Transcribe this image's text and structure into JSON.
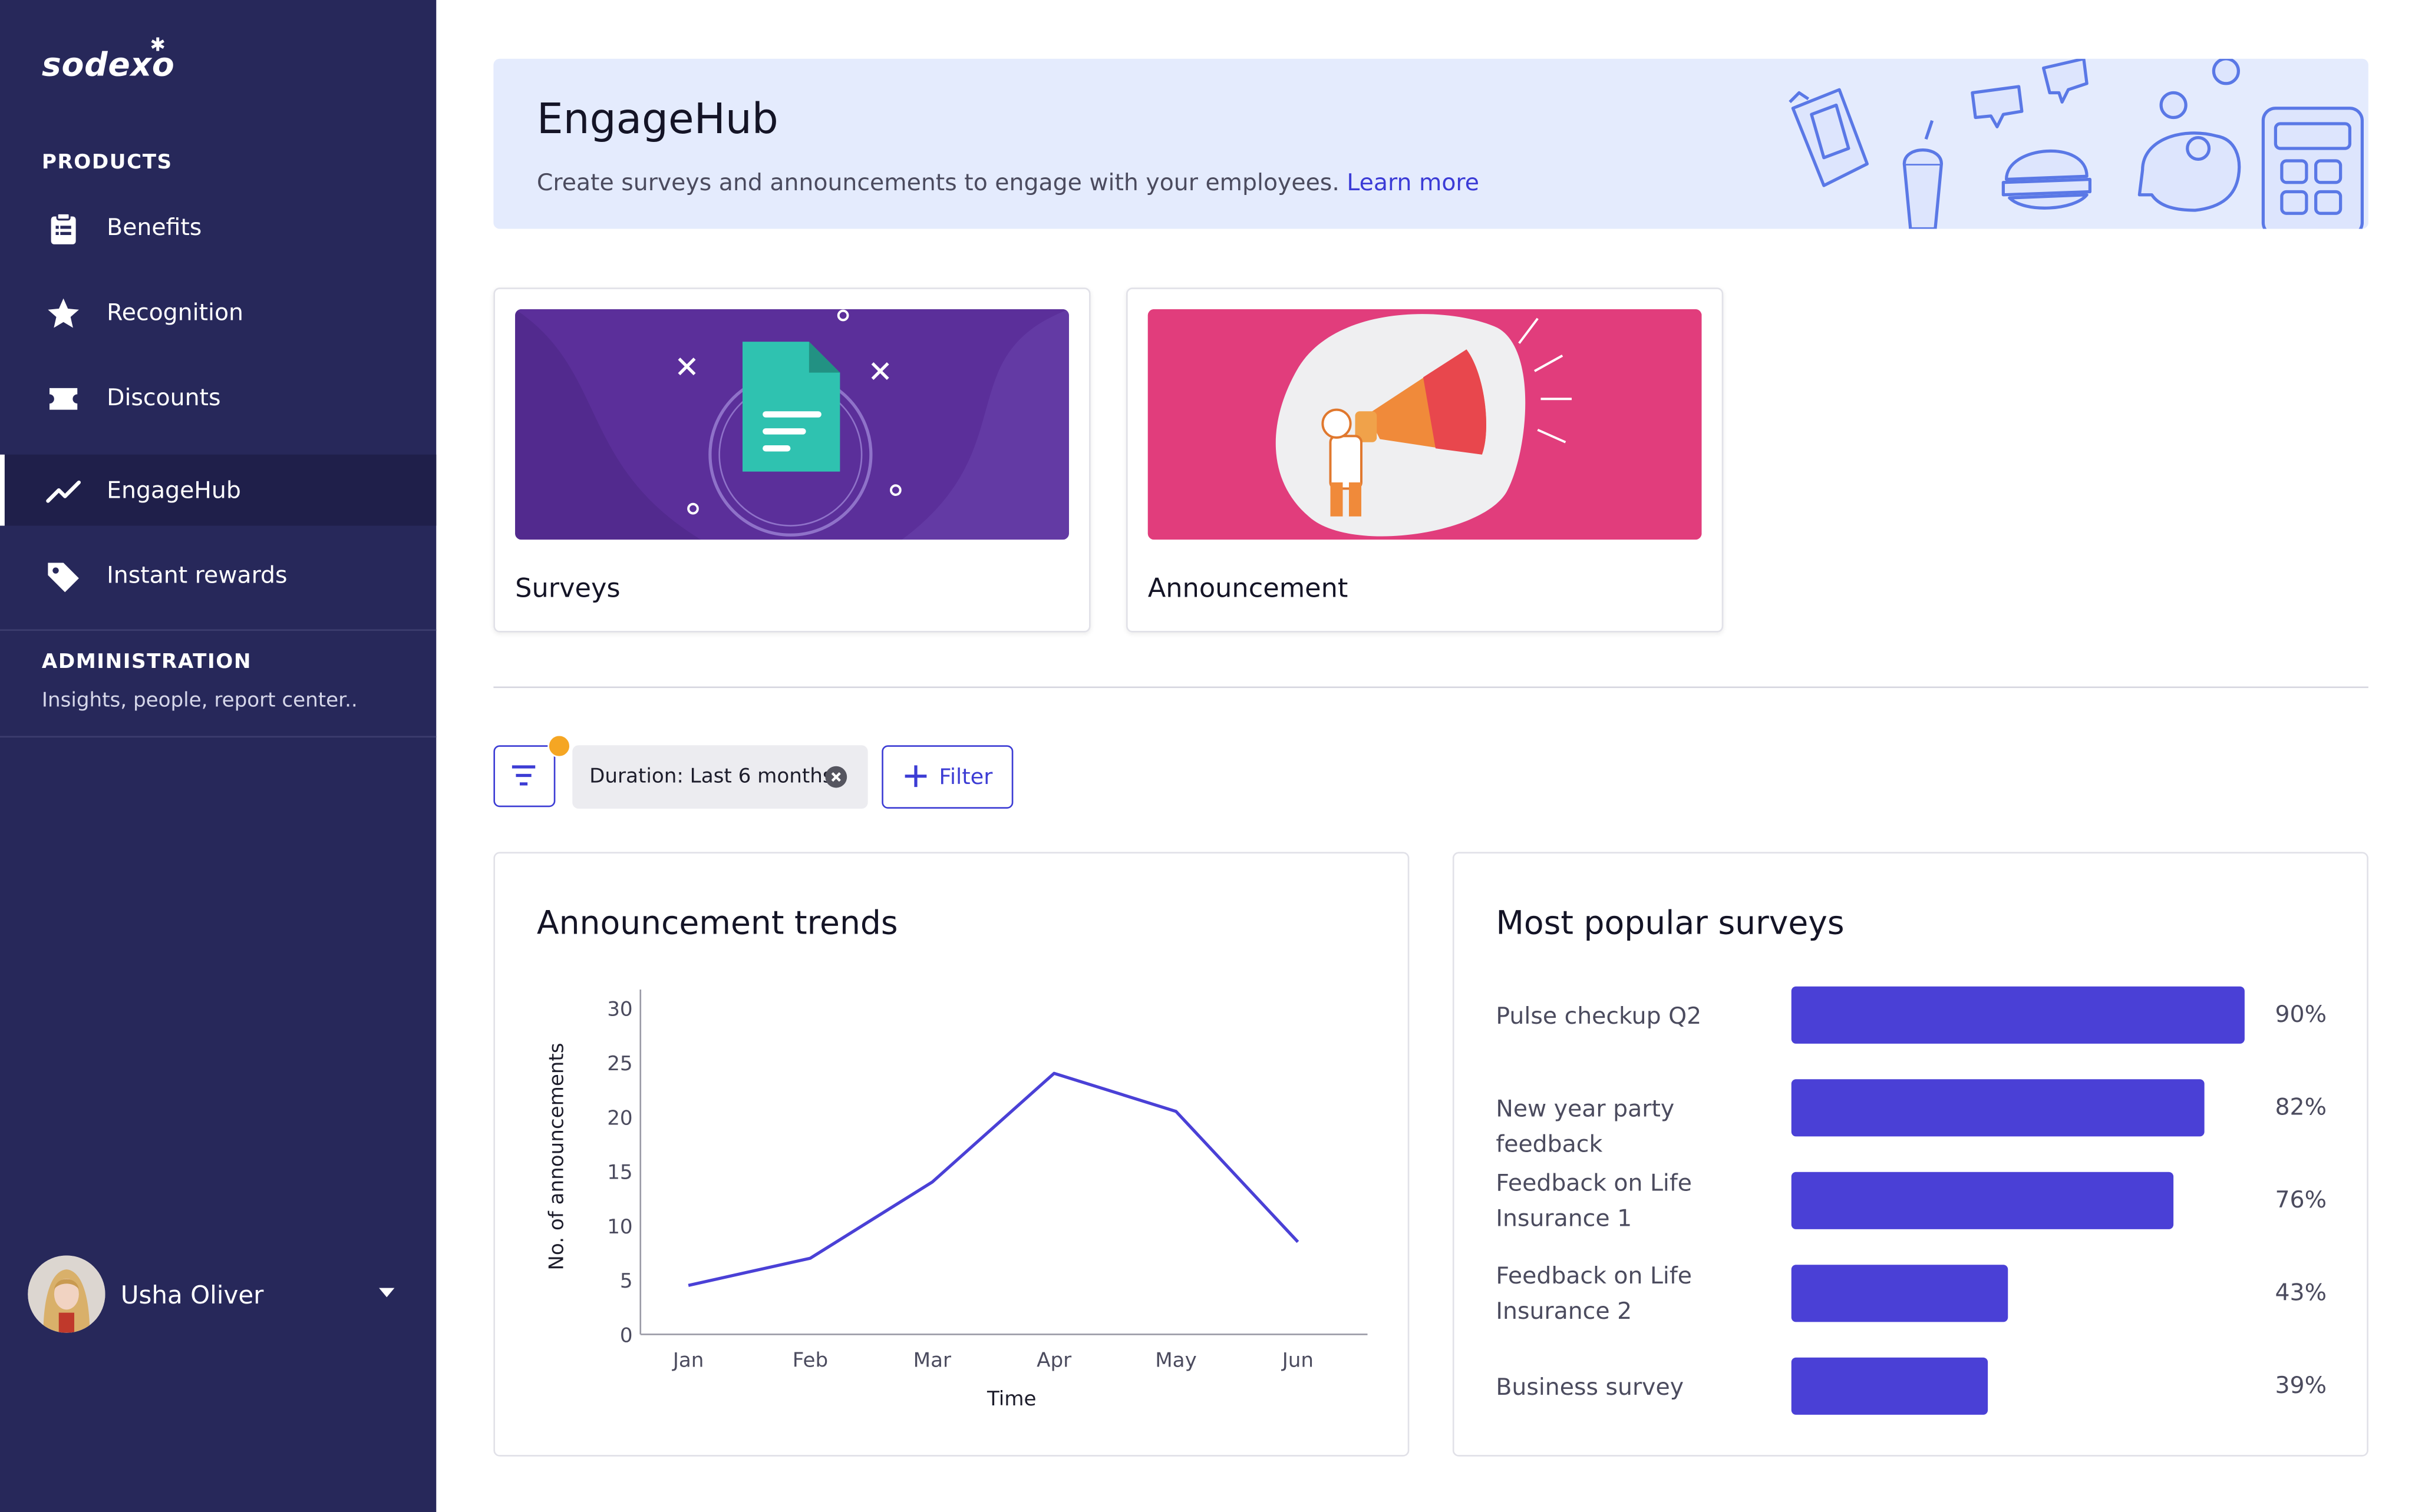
{
  "sidebar": {
    "logo": "sodexo",
    "products_label": "PRODUCTS",
    "items": [
      {
        "label": "Benefits",
        "icon": "clipboard-icon"
      },
      {
        "label": "Recognition",
        "icon": "star-icon"
      },
      {
        "label": "Discounts",
        "icon": "ticket-icon"
      },
      {
        "label": "EngageHub",
        "icon": "trend-icon",
        "active": true
      },
      {
        "label": "Instant rewards",
        "icon": "tag-icon"
      }
    ],
    "admin_label": "ADMINISTRATION",
    "admin_sub": "Insights, people, report center..",
    "user": {
      "name": "Usha Oliver"
    }
  },
  "banner": {
    "title": "EngageHub",
    "description": "Create surveys and announcements to engage with your employees.",
    "link": "Learn more"
  },
  "cards": [
    {
      "title": "Surveys",
      "color": "#5b2f9a"
    },
    {
      "title": "Announcement",
      "color": "#e13d7c"
    }
  ],
  "filters": {
    "chip": "Duration: Last 6 months",
    "add_label": "Filter"
  },
  "colors": {
    "accent": "#3c3cd4",
    "bar": "#4a40d6",
    "sidebar": "#27285a",
    "badge": "#f5a623"
  },
  "chart_data": [
    {
      "type": "line",
      "title": "Announcement trends",
      "xlabel": "Time",
      "ylabel": "No. of announcements",
      "categories": [
        "Jan",
        "Feb",
        "Mar",
        "Apr",
        "May",
        "Jun"
      ],
      "values": [
        4.5,
        7,
        14,
        24,
        20.5,
        8.5
      ],
      "ylim": [
        0,
        30
      ],
      "yticks": [
        0,
        5,
        10,
        15,
        20,
        25,
        30
      ],
      "grid": false
    },
    {
      "type": "bar",
      "orientation": "horizontal",
      "title": "Most popular surveys",
      "categories": [
        "Pulse checkup Q2",
        "New year party feedback",
        "Feedback on Life Insurance 1",
        "Feedback on Life Insurance 2",
        "Business survey"
      ],
      "values": [
        90,
        82,
        76,
        43,
        39
      ],
      "labels": [
        "90%",
        "82%",
        "76%",
        "43%",
        "39%"
      ],
      "unit": "%",
      "ylim": [
        0,
        100
      ]
    }
  ]
}
